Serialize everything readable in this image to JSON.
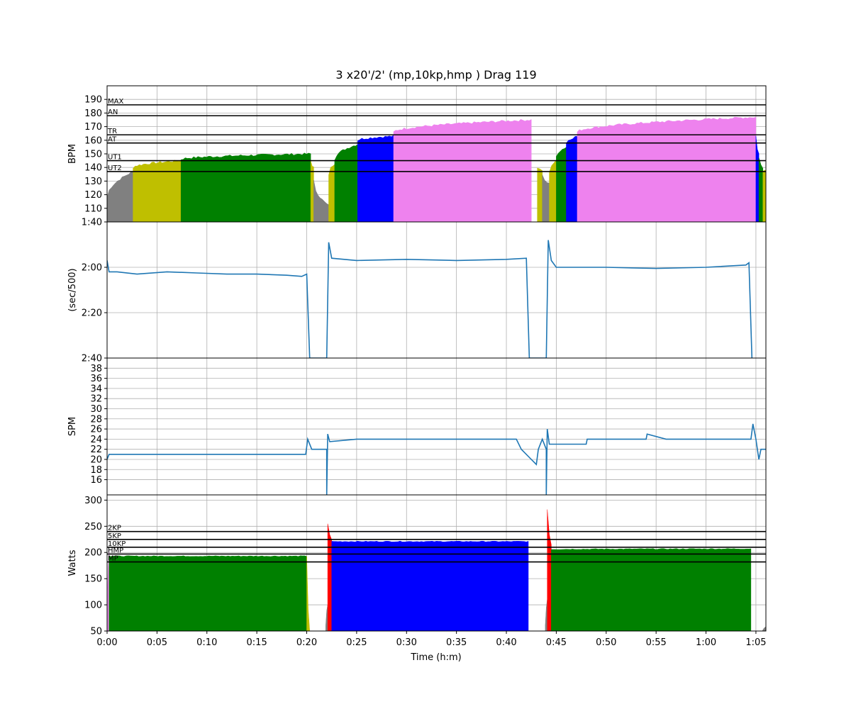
{
  "title": "3 x20'/2' (mp,10kp,hmp ) Drag 119",
  "x_axis": {
    "label": "Time (h:m)",
    "range_minutes": [
      0,
      66
    ],
    "ticks": [
      {
        "v": 0,
        "label": "0:00"
      },
      {
        "v": 5,
        "label": "0:05"
      },
      {
        "v": 10,
        "label": "0:10"
      },
      {
        "v": 15,
        "label": "0:15"
      },
      {
        "v": 20,
        "label": "0:20"
      },
      {
        "v": 25,
        "label": "0:25"
      },
      {
        "v": 30,
        "label": "0:30"
      },
      {
        "v": 35,
        "label": "0:35"
      },
      {
        "v": 40,
        "label": "0:40"
      },
      {
        "v": 45,
        "label": "0:45"
      },
      {
        "v": 50,
        "label": "0:50"
      },
      {
        "v": 55,
        "label": "0:55"
      },
      {
        "v": 60,
        "label": "1:00"
      },
      {
        "v": 65,
        "label": "1:05"
      }
    ]
  },
  "zone_colors": {
    "gray": "#808080",
    "yellow": "#bfbf00",
    "green": "#008000",
    "blue": "#0000ff",
    "violet": "#ee82ee",
    "red": "#ff0000"
  },
  "chart_data": [
    {
      "id": "bpm",
      "type": "area",
      "ylabel": "BPM",
      "ylim": [
        100,
        200
      ],
      "grid": true,
      "yticks": [
        {
          "v": 110,
          "label": "110"
        },
        {
          "v": 120,
          "label": "120"
        },
        {
          "v": 130,
          "label": "130"
        },
        {
          "v": 140,
          "label": "140"
        },
        {
          "v": 150,
          "label": "150"
        },
        {
          "v": 160,
          "label": "160"
        },
        {
          "v": 170,
          "label": "170"
        },
        {
          "v": 180,
          "label": "180"
        },
        {
          "v": 190,
          "label": "190"
        }
      ],
      "zone_lines": [
        {
          "label": "MAX",
          "v": 186
        },
        {
          "label": "AN",
          "v": 178
        },
        {
          "label": "TR",
          "v": 164
        },
        {
          "label": "AT",
          "v": 158
        },
        {
          "label": "UT1",
          "v": 145
        },
        {
          "label": "UT2",
          "v": 137
        }
      ],
      "segments": [
        {
          "x0": 0.0,
          "x1": 2.6,
          "y0": 118,
          "y1": 137,
          "color": "gray"
        },
        {
          "x0": 2.6,
          "x1": 7.4,
          "y0": 140,
          "y1": 145,
          "color": "yellow"
        },
        {
          "x0": 7.4,
          "x1": 20.4,
          "y0": 146,
          "y1": 150,
          "color": "green"
        },
        {
          "x0": 20.4,
          "x1": 20.7,
          "y0": 145,
          "y1": 140,
          "color": "yellow"
        },
        {
          "x0": 20.7,
          "x1": 22.2,
          "y0": 130,
          "y1": 112,
          "color": "gray"
        },
        {
          "x0": 22.2,
          "x1": 22.8,
          "y0": 135,
          "y1": 143,
          "color": "yellow"
        },
        {
          "x0": 22.8,
          "x1": 25.1,
          "y0": 146,
          "y1": 157,
          "color": "green"
        },
        {
          "x0": 25.1,
          "x1": 28.7,
          "y0": 160,
          "y1": 163,
          "color": "blue"
        },
        {
          "x0": 28.7,
          "x1": 42.5,
          "y0": 166,
          "y1": 175,
          "color": "violet"
        },
        {
          "x0": 43.1,
          "x1": 43.6,
          "y0": 140,
          "y1": 138,
          "color": "yellow"
        },
        {
          "x0": 43.6,
          "x1": 44.3,
          "y0": 134,
          "y1": 128,
          "color": "gray"
        },
        {
          "x0": 44.3,
          "x1": 45.0,
          "y0": 137,
          "y1": 145,
          "color": "yellow"
        },
        {
          "x0": 45.0,
          "x1": 46.0,
          "y0": 148,
          "y1": 155,
          "color": "green"
        },
        {
          "x0": 46.0,
          "x1": 47.1,
          "y0": 158,
          "y1": 163,
          "color": "blue"
        },
        {
          "x0": 47.1,
          "x1": 65.0,
          "y0": 166,
          "y1": 177,
          "color": "violet"
        },
        {
          "x0": 65.0,
          "x1": 65.3,
          "y0": 163,
          "y1": 150,
          "color": "blue"
        },
        {
          "x0": 65.3,
          "x1": 65.7,
          "y0": 147,
          "y1": 140,
          "color": "green"
        },
        {
          "x0": 65.7,
          "x1": 66.0,
          "y0": 138,
          "y1": 138,
          "color": "yellow"
        }
      ]
    },
    {
      "id": "pace",
      "type": "line",
      "ylabel": "(sec/500)",
      "ylim": [
        160,
        100
      ],
      "inverted": true,
      "grid": true,
      "yticks": [
        {
          "v": 100,
          "label": "1:40"
        },
        {
          "v": 120,
          "label": "2:00"
        },
        {
          "v": 140,
          "label": "2:20"
        },
        {
          "v": 160,
          "label": "2:40"
        }
      ],
      "color": "#1f77b4",
      "points": [
        [
          0,
          117
        ],
        [
          0.2,
          122
        ],
        [
          1,
          122
        ],
        [
          3,
          123
        ],
        [
          6,
          122
        ],
        [
          9,
          122.5
        ],
        [
          12,
          123
        ],
        [
          15,
          123
        ],
        [
          18,
          123.5
        ],
        [
          19.5,
          124
        ],
        [
          20,
          123
        ],
        [
          20.3,
          160
        ],
        [
          22.0,
          160
        ],
        [
          22.2,
          109
        ],
        [
          22.5,
          116
        ],
        [
          25,
          117
        ],
        [
          30,
          116.5
        ],
        [
          35,
          117
        ],
        [
          40,
          116.5
        ],
        [
          42,
          116
        ],
        [
          42.3,
          160
        ],
        [
          44.0,
          160
        ],
        [
          44.2,
          108
        ],
        [
          44.5,
          117
        ],
        [
          45,
          120
        ],
        [
          50,
          120
        ],
        [
          55,
          120.5
        ],
        [
          60,
          120
        ],
        [
          64,
          119
        ],
        [
          64.3,
          118
        ],
        [
          64.6,
          160
        ]
      ]
    },
    {
      "id": "spm",
      "type": "line",
      "ylabel": "SPM",
      "ylim": [
        13,
        40
      ],
      "grid": true,
      "yticks": [
        {
          "v": 16,
          "label": "16"
        },
        {
          "v": 18,
          "label": "18"
        },
        {
          "v": 20,
          "label": "20"
        },
        {
          "v": 22,
          "label": "22"
        },
        {
          "v": 24,
          "label": "24"
        },
        {
          "v": 26,
          "label": "26"
        },
        {
          "v": 28,
          "label": "28"
        },
        {
          "v": 30,
          "label": "30"
        },
        {
          "v": 32,
          "label": "32"
        },
        {
          "v": 34,
          "label": "34"
        },
        {
          "v": 36,
          "label": "36"
        },
        {
          "v": 38,
          "label": "38"
        }
      ],
      "color": "#1f77b4",
      "points": [
        [
          0,
          20
        ],
        [
          0.2,
          21
        ],
        [
          3,
          21
        ],
        [
          5,
          21
        ],
        [
          10,
          21
        ],
        [
          15,
          21
        ],
        [
          19.9,
          21
        ],
        [
          20.1,
          24
        ],
        [
          20.5,
          22
        ],
        [
          21.5,
          22
        ],
        [
          22.0,
          22
        ],
        [
          22.0,
          13
        ],
        [
          22.1,
          25
        ],
        [
          22.3,
          23.5
        ],
        [
          25,
          24
        ],
        [
          30,
          24
        ],
        [
          35,
          24
        ],
        [
          40,
          24
        ],
        [
          41.0,
          24
        ],
        [
          41.5,
          22
        ],
        [
          42.5,
          20
        ],
        [
          43.0,
          19
        ],
        [
          43.2,
          22
        ],
        [
          43.6,
          24
        ],
        [
          44.0,
          22
        ],
        [
          44.0,
          13
        ],
        [
          44.1,
          26
        ],
        [
          44.3,
          23
        ],
        [
          48,
          23
        ],
        [
          48.1,
          24
        ],
        [
          54,
          24
        ],
        [
          54.1,
          25
        ],
        [
          56,
          24
        ],
        [
          60,
          24
        ],
        [
          64.5,
          24
        ],
        [
          64.7,
          27
        ],
        [
          65.0,
          24
        ],
        [
          65.3,
          20
        ],
        [
          65.5,
          22
        ],
        [
          66,
          22
        ]
      ]
    },
    {
      "id": "watts",
      "type": "area",
      "ylabel": "Watts",
      "ylim": [
        50,
        310
      ],
      "grid": true,
      "yticks": [
        {
          "v": 50,
          "label": "50"
        },
        {
          "v": 100,
          "label": "100"
        },
        {
          "v": 150,
          "label": "150"
        },
        {
          "v": 200,
          "label": "200"
        },
        {
          "v": 250,
          "label": "250"
        },
        {
          "v": 300,
          "label": "300"
        }
      ],
      "zone_lines": [
        {
          "label": "2KP",
          "v": 240
        },
        {
          "label": "5KP",
          "v": 225
        },
        {
          "label": "10KP",
          "v": 210
        },
        {
          "label": "HMP",
          "v": 197
        },
        {
          "label": "MP",
          "v": 182
        }
      ],
      "segments": [
        {
          "x0": 0.0,
          "x1": 0.2,
          "y0": 90,
          "y1": 205,
          "color": "violet"
        },
        {
          "x0": 0.2,
          "x1": 20.0,
          "y0": 193,
          "y1": 193,
          "color": "green"
        },
        {
          "x0": 20.0,
          "x1": 20.3,
          "y0": 193,
          "y1": 50,
          "color": "yellow"
        },
        {
          "x0": 21.9,
          "x1": 22.1,
          "y0": 60,
          "y1": 100,
          "color": "gray"
        },
        {
          "x0": 22.1,
          "x1": 22.5,
          "y0": 255,
          "y1": 225,
          "color": "red"
        },
        {
          "x0": 22.5,
          "x1": 42.2,
          "y0": 221,
          "y1": 221,
          "color": "blue"
        },
        {
          "x0": 43.9,
          "x1": 44.1,
          "y0": 60,
          "y1": 110,
          "color": "gray"
        },
        {
          "x0": 44.1,
          "x1": 44.5,
          "y0": 282,
          "y1": 215,
          "color": "red"
        },
        {
          "x0": 44.5,
          "x1": 64.5,
          "y0": 206,
          "y1": 207,
          "color": "green"
        },
        {
          "x0": 65.6,
          "x1": 66.0,
          "y0": 50,
          "y1": 58,
          "color": "gray"
        }
      ]
    }
  ]
}
